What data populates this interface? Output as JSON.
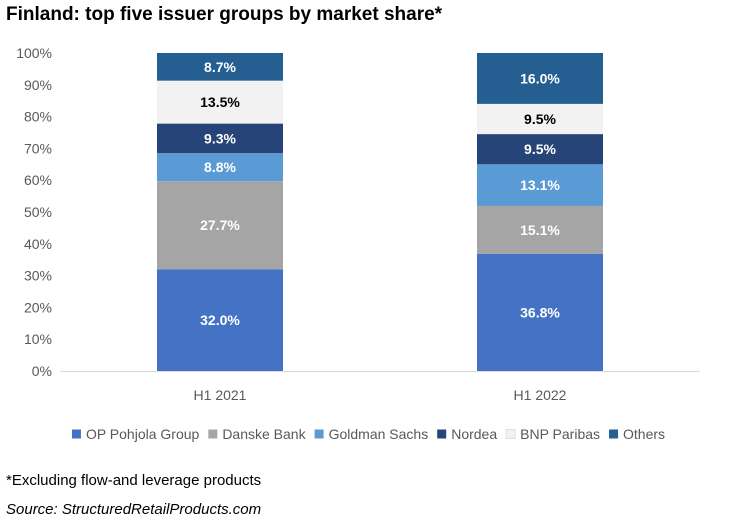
{
  "title": "Finland: top five issuer groups by market share*",
  "footnote": "*Excluding flow-and leverage products",
  "source": "Source: StructuredRetailProducts.com",
  "chart_data": {
    "type": "bar",
    "stacked": true,
    "categories": [
      "H1 2021",
      "H1 2022"
    ],
    "ylim": [
      0,
      100
    ],
    "yticks": [
      "0%",
      "10%",
      "20%",
      "30%",
      "40%",
      "50%",
      "60%",
      "70%",
      "80%",
      "90%",
      "100%"
    ],
    "grid": false,
    "legend_position": "bottom",
    "series": [
      {
        "name": "OP Pohjola Group",
        "color": "#4472C4",
        "label_color": "#ffffff",
        "values": [
          32.0,
          36.8
        ],
        "labels": [
          "32.0%",
          "36.8%"
        ]
      },
      {
        "name": "Danske Bank",
        "color": "#A5A5A5",
        "label_color": "#ffffff",
        "values": [
          27.7,
          15.1
        ],
        "labels": [
          "27.7%",
          "15.1%"
        ]
      },
      {
        "name": "Goldman Sachs",
        "color": "#5B9BD5",
        "label_color": "#ffffff",
        "values": [
          8.8,
          13.1
        ],
        "labels": [
          "8.8%",
          "13.1%"
        ]
      },
      {
        "name": "Nordea",
        "color": "#264478",
        "label_color": "#ffffff",
        "values": [
          9.3,
          9.5
        ],
        "labels": [
          "9.3%",
          "9.5%"
        ]
      },
      {
        "name": "BNP Paribas",
        "color": "#F2F2F2",
        "label_color": "#000000",
        "values": [
          13.5,
          9.5
        ],
        "labels": [
          "13.5%",
          "9.5%"
        ]
      },
      {
        "name": "Others",
        "color": "#255E91",
        "label_color": "#ffffff",
        "values": [
          8.7,
          16.0
        ],
        "labels": [
          "8.7%",
          "16.0%"
        ]
      }
    ]
  }
}
